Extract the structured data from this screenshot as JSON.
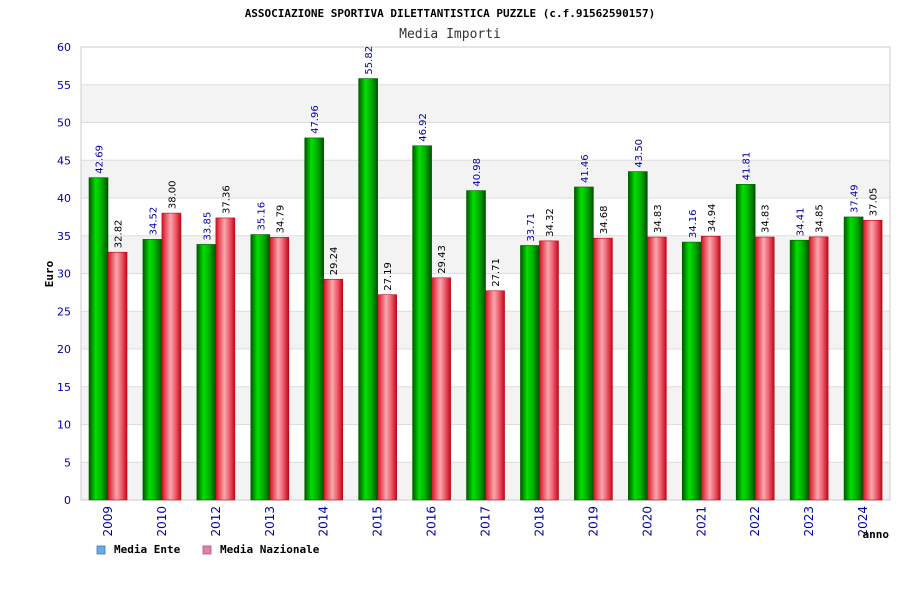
{
  "chart_data": {
    "type": "bar",
    "title": "ASSOCIAZIONE SPORTIVA DILETTANTISTICA PUZZLE (c.f.91562590157)",
    "subtitle": "Media Importi",
    "xlabel": "anno",
    "ylabel": "Euro",
    "ylim": [
      0,
      60
    ],
    "yticks": [
      0,
      5,
      10,
      15,
      20,
      25,
      30,
      35,
      40,
      45,
      50,
      55,
      60
    ],
    "categories": [
      "2009",
      "2010",
      "2012",
      "2013",
      "2014",
      "2015",
      "2016",
      "2017",
      "2018",
      "2019",
      "2020",
      "2021",
      "2022",
      "2023",
      "2024"
    ],
    "series": [
      {
        "name": "Media Ente",
        "values": [
          42.69,
          34.52,
          33.85,
          35.16,
          47.96,
          55.82,
          46.92,
          40.98,
          33.71,
          41.46,
          43.5,
          34.16,
          41.81,
          34.41,
          37.49
        ],
        "labels": [
          "42.69",
          "34.52",
          "33.85",
          "35.16",
          "47.96",
          "55.82",
          "46.92",
          "40.98",
          "33.71",
          "41.46",
          "43.50",
          "34.16",
          "41.81",
          "34.41",
          "37.49"
        ]
      },
      {
        "name": "Media Nazionale",
        "values": [
          32.82,
          38.0,
          37.36,
          34.79,
          29.24,
          27.19,
          29.43,
          27.71,
          34.32,
          34.68,
          34.83,
          34.94,
          34.83,
          34.85,
          37.05
        ],
        "labels": [
          "32.82",
          "38.00",
          "37.36",
          "34.79",
          "29.24",
          "27.19",
          "29.43",
          "27.71",
          "34.32",
          "34.68",
          "34.83",
          "34.94",
          "34.83",
          "34.85",
          "37.05"
        ]
      }
    ],
    "grid": true,
    "legend": "bottom-left",
    "colors": {
      "ente_bar": "#00c000",
      "naz_bar": "#f04050",
      "ente_legend": "#66aaee",
      "naz_legend": "#e080b0",
      "band": "#f3f3f3",
      "grid": "#dddddd"
    }
  }
}
